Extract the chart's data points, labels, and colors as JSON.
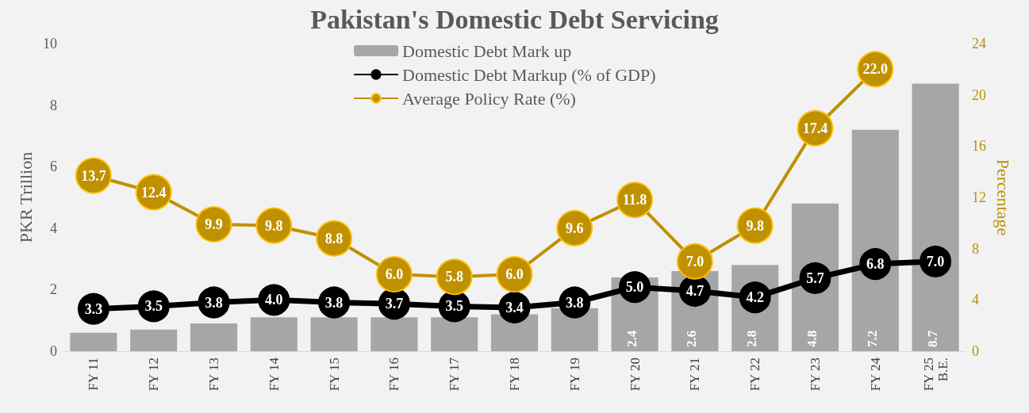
{
  "chart_data": {
    "type": "bar",
    "title": "Pakistan's Domestic Debt Servicing",
    "ylabel": "PKR Trillion",
    "y2label": "Percentage",
    "categories": [
      "FY 11",
      "FY 12",
      "FY 13",
      "FY 14",
      "FY 15",
      "FY 16",
      "FY 17",
      "FY 18",
      "FY 19",
      "FY 20",
      "FY 21",
      "FY 22",
      "FY 23",
      "FY 24",
      "FY 25\nB.E."
    ],
    "series": [
      {
        "name": "Domestic Debt Mark up",
        "color": "#a6a6a6",
        "values": [
          0.6,
          0.7,
          0.9,
          1.1,
          1.1,
          1.1,
          1.1,
          1.2,
          1.4,
          2.4,
          2.6,
          2.8,
          4.8,
          7.2,
          8.7
        ],
        "value_labels": [
          null,
          null,
          null,
          null,
          null,
          null,
          null,
          null,
          null,
          "2.4",
          "2.6",
          "2.8",
          "4.8",
          "7.2",
          "8.7"
        ]
      },
      {
        "name": "Domestic Debt Markup (% of GDP)",
        "type": "line",
        "axis": "y2",
        "color": "#000000",
        "marker": "circle",
        "values": [
          3.3,
          3.5,
          3.8,
          4.0,
          3.8,
          3.7,
          3.5,
          3.4,
          3.8,
          5.0,
          4.7,
          4.2,
          5.7,
          6.8,
          7.0
        ],
        "value_labels": [
          "3.3",
          "3.5",
          "3.8",
          "4.0",
          "3.8",
          "3.7",
          "3.5",
          "3.4",
          "3.8",
          "5.0",
          "4.7",
          "4.2",
          "5.7",
          "6.8",
          "7.0"
        ]
      },
      {
        "name": "Average Policy Rate (%)",
        "type": "line",
        "axis": "y2",
        "color": "#bf9000",
        "marker": "circle",
        "values": [
          13.7,
          12.4,
          9.9,
          9.8,
          8.8,
          6.0,
          5.8,
          6.0,
          9.6,
          11.8,
          7.0,
          9.8,
          17.4,
          22.0,
          null
        ],
        "value_labels": [
          "13.7",
          "12.4",
          "9.9",
          "9.8",
          "8.8",
          "6.0",
          "5.8",
          "6.0",
          "9.6",
          "11.8",
          "7.0",
          "9.8",
          "17.4",
          "22.0",
          null
        ]
      }
    ],
    "ylim": [
      0,
      10
    ],
    "yticks": [
      0,
      2,
      4,
      6,
      8,
      10
    ],
    "y2lim": [
      0,
      24
    ],
    "y2ticks": [
      0,
      4,
      8,
      12,
      16,
      20,
      24
    ],
    "grid": false,
    "legend": "top"
  }
}
